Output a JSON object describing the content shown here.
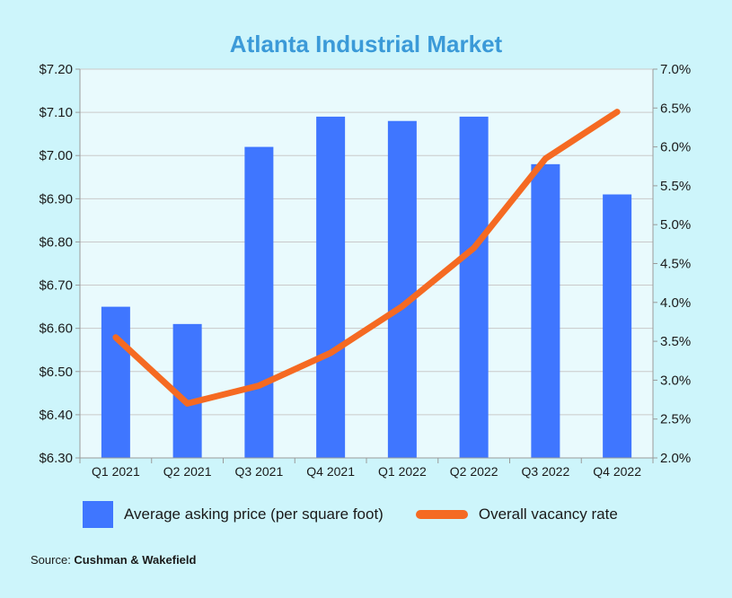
{
  "chart_data": {
    "type": "bar",
    "title": "Atlanta Industrial Market",
    "categories": [
      "Q1 2021",
      "Q2 2021",
      "Q3 2021",
      "Q4 2021",
      "Q1 2022",
      "Q2 2022",
      "Q3 2022",
      "Q4 2022"
    ],
    "series": [
      {
        "name": "Average asking price (per square foot)",
        "type": "bar",
        "axis": "left",
        "color": "#3f76ff",
        "values": [
          6.65,
          6.61,
          7.02,
          7.09,
          7.08,
          7.09,
          6.98,
          6.91
        ]
      },
      {
        "name": "Overall vacancy rate",
        "type": "line",
        "axis": "right",
        "color": "#f56a22",
        "values": [
          3.55,
          2.7,
          2.93,
          3.35,
          3.95,
          4.7,
          5.85,
          6.45
        ]
      }
    ],
    "y_left": {
      "ylim": [
        6.3,
        7.2
      ],
      "ticks": [
        6.3,
        6.4,
        6.5,
        6.6,
        6.7,
        6.8,
        6.9,
        7.0,
        7.1,
        7.2
      ],
      "tick_labels": [
        "$6.30",
        "$6.40",
        "$6.50",
        "$6.60",
        "$6.70",
        "$6.80",
        "$6.90",
        "$7.00",
        "$7.10",
        "$7.20"
      ]
    },
    "y_right": {
      "ylim": [
        2.0,
        7.0
      ],
      "ticks": [
        2.0,
        2.5,
        3.0,
        3.5,
        4.0,
        4.5,
        5.0,
        5.5,
        6.0,
        6.5,
        7.0
      ],
      "tick_labels": [
        "2.0%",
        "2.5%",
        "3.0%",
        "3.5%",
        "4.0%",
        "4.5%",
        "5.0%",
        "5.5%",
        "6.0%",
        "6.5%",
        "7.0%"
      ]
    },
    "grid": "horizontal",
    "legend_position": "bottom"
  },
  "legend": {
    "bar_label": "Average asking price (per square foot)",
    "line_label": "Overall vacancy rate"
  },
  "source": {
    "prefix": "Source: ",
    "name": "Cushman & Wakefield"
  },
  "colors": {
    "background": "#cdf5fb",
    "plot_background": "#e9fafd",
    "title": "#3b9ad8",
    "bar": "#3f76ff",
    "line": "#f56a22"
  }
}
